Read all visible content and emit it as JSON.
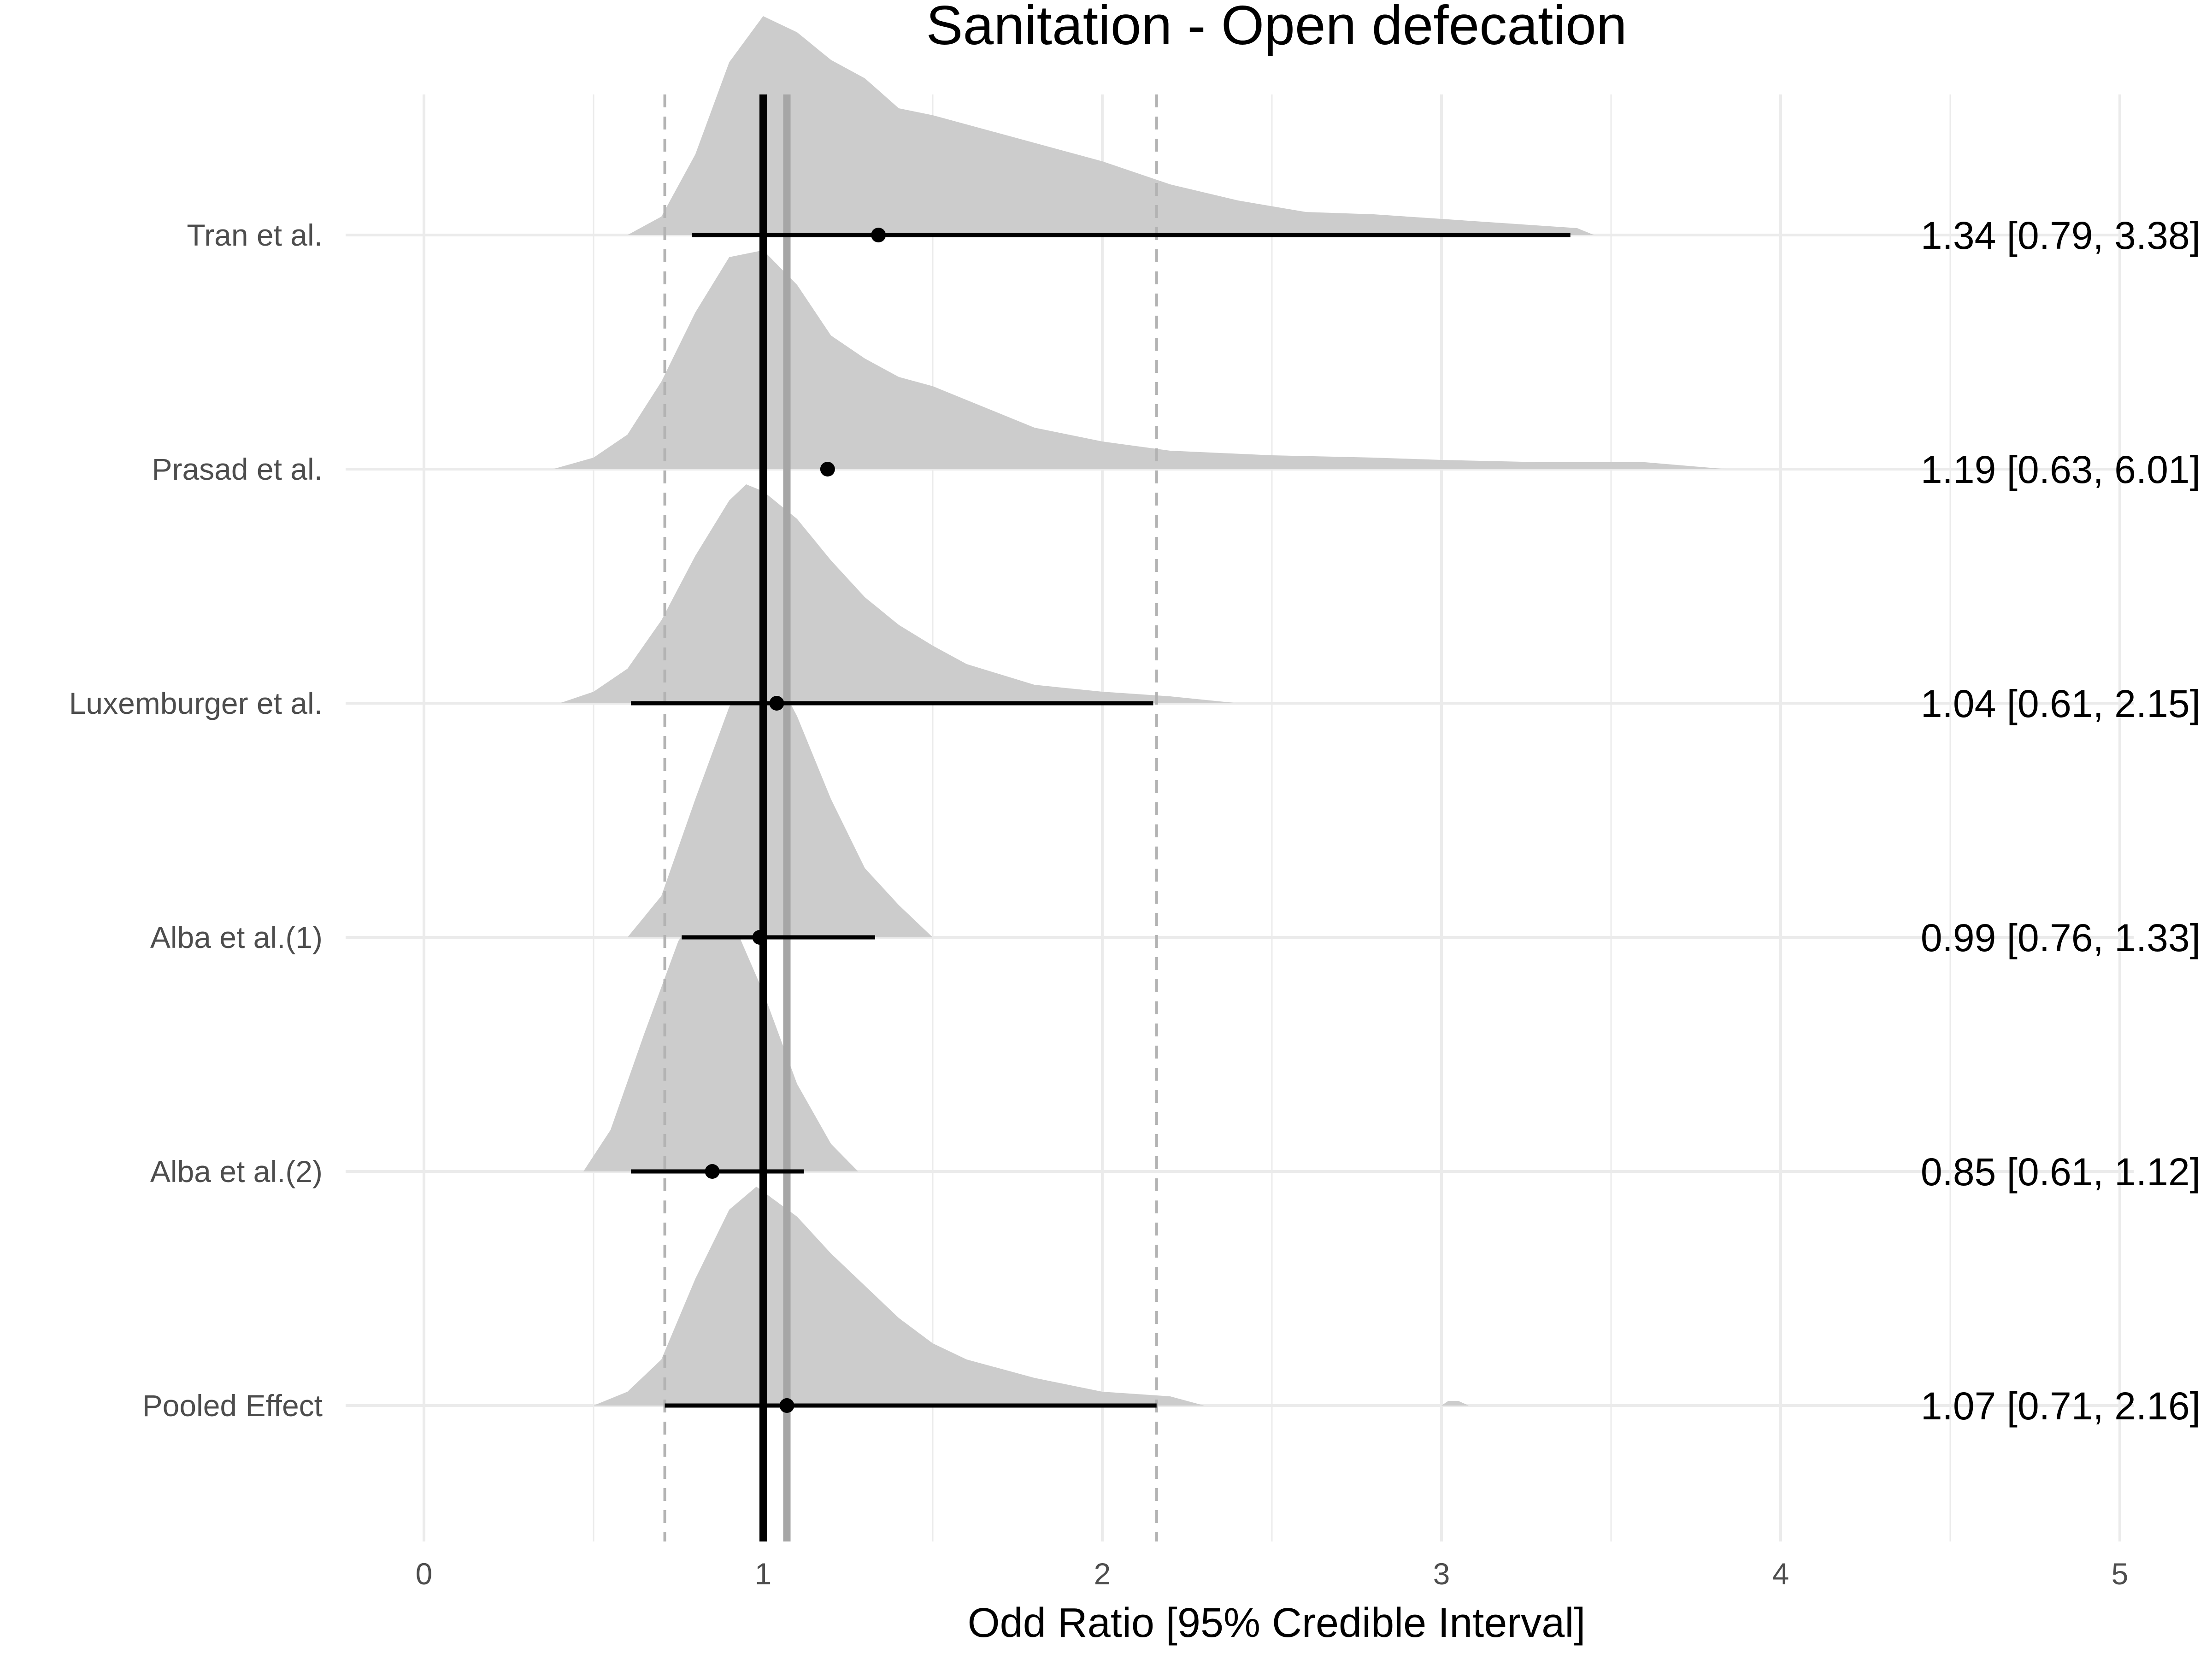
{
  "chart_data": {
    "type": "forest-density",
    "title": "Sanitation - Open defecation",
    "xlabel": "Odd Ratio [95% Credible Interval]",
    "ylabel": "",
    "xlim": [
      0,
      5
    ],
    "x_ticks": [
      0,
      1,
      2,
      3,
      4,
      5
    ],
    "grid": true,
    "reference_line": 1,
    "pooled_estimate_line": 1.07,
    "pooled_interval_lines": [
      0.71,
      2.16
    ],
    "studies": [
      {
        "label": "Tran et al.",
        "estimate": 1.34,
        "lower": 0.79,
        "upper": 3.38,
        "annotation": "1.34 [0.79, 3.38]",
        "density": [
          [
            0.6,
            0
          ],
          [
            0.7,
            0.08
          ],
          [
            0.8,
            0.35
          ],
          [
            0.9,
            0.75
          ],
          [
            1.0,
            0.95
          ],
          [
            1.1,
            0.88
          ],
          [
            1.2,
            0.76
          ],
          [
            1.3,
            0.68
          ],
          [
            1.4,
            0.55
          ],
          [
            1.5,
            0.52
          ],
          [
            1.6,
            0.48
          ],
          [
            1.7,
            0.44
          ],
          [
            1.8,
            0.4
          ],
          [
            1.9,
            0.36
          ],
          [
            2.0,
            0.32
          ],
          [
            2.2,
            0.22
          ],
          [
            2.4,
            0.15
          ],
          [
            2.6,
            0.1
          ],
          [
            2.8,
            0.09
          ],
          [
            3.0,
            0.07
          ],
          [
            3.2,
            0.05
          ],
          [
            3.4,
            0.03
          ],
          [
            3.45,
            0
          ]
        ]
      },
      {
        "label": "Prasad et al.",
        "estimate": 1.19,
        "lower": 0.63,
        "upper": 6.01,
        "annotation": "1.19 [0.63, 6.01]",
        "density": [
          [
            0.38,
            0
          ],
          [
            0.5,
            0.05
          ],
          [
            0.6,
            0.15
          ],
          [
            0.7,
            0.38
          ],
          [
            0.8,
            0.68
          ],
          [
            0.9,
            0.92
          ],
          [
            1.0,
            0.95
          ],
          [
            1.1,
            0.8
          ],
          [
            1.2,
            0.58
          ],
          [
            1.3,
            0.48
          ],
          [
            1.4,
            0.4
          ],
          [
            1.5,
            0.36
          ],
          [
            1.6,
            0.3
          ],
          [
            1.7,
            0.24
          ],
          [
            1.8,
            0.18
          ],
          [
            2.0,
            0.12
          ],
          [
            2.2,
            0.08
          ],
          [
            2.5,
            0.06
          ],
          [
            2.8,
            0.05
          ],
          [
            3.0,
            0.04
          ],
          [
            3.3,
            0.03
          ],
          [
            3.6,
            0.03
          ],
          [
            3.84,
            0
          ]
        ]
      },
      {
        "label": "Luxemburger et al.",
        "estimate": 1.04,
        "lower": 0.61,
        "upper": 2.15,
        "annotation": "1.04 [0.61, 2.15]",
        "density": [
          [
            0.4,
            0
          ],
          [
            0.5,
            0.05
          ],
          [
            0.6,
            0.15
          ],
          [
            0.7,
            0.36
          ],
          [
            0.8,
            0.64
          ],
          [
            0.9,
            0.88
          ],
          [
            0.95,
            0.95
          ],
          [
            1.0,
            0.92
          ],
          [
            1.1,
            0.8
          ],
          [
            1.2,
            0.62
          ],
          [
            1.3,
            0.46
          ],
          [
            1.4,
            0.34
          ],
          [
            1.5,
            0.25
          ],
          [
            1.6,
            0.17
          ],
          [
            1.8,
            0.08
          ],
          [
            2.0,
            0.05
          ],
          [
            2.2,
            0.03
          ],
          [
            2.4,
            0
          ]
        ]
      },
      {
        "label": "Alba et al.(1)",
        "estimate": 0.99,
        "lower": 0.76,
        "upper": 1.33,
        "annotation": "0.99 [0.76, 1.33]",
        "density": [
          [
            0.6,
            0
          ],
          [
            0.7,
            0.18
          ],
          [
            0.8,
            0.6
          ],
          [
            0.9,
            1.0
          ],
          [
            0.98,
            1.2
          ],
          [
            1.05,
            1.1
          ],
          [
            1.1,
            0.96
          ],
          [
            1.2,
            0.6
          ],
          [
            1.3,
            0.3
          ],
          [
            1.4,
            0.14
          ],
          [
            1.5,
            0
          ]
        ]
      },
      {
        "label": "Alba et al.(2)",
        "estimate": 0.85,
        "lower": 0.61,
        "upper": 1.12,
        "annotation": "0.85 [0.61, 1.12]",
        "density": [
          [
            0.47,
            0
          ],
          [
            0.55,
            0.18
          ],
          [
            0.65,
            0.6
          ],
          [
            0.75,
            1.0
          ],
          [
            0.84,
            1.2
          ],
          [
            0.9,
            1.12
          ],
          [
            1.0,
            0.78
          ],
          [
            1.1,
            0.38
          ],
          [
            1.2,
            0.12
          ],
          [
            1.28,
            0
          ]
        ]
      },
      {
        "label": "Pooled Effect",
        "estimate": 1.07,
        "lower": 0.71,
        "upper": 2.16,
        "annotation": "1.07 [0.71, 2.16]",
        "density": [
          [
            0.5,
            0
          ],
          [
            0.6,
            0.06
          ],
          [
            0.7,
            0.2
          ],
          [
            0.8,
            0.55
          ],
          [
            0.9,
            0.85
          ],
          [
            0.98,
            0.95
          ],
          [
            1.1,
            0.82
          ],
          [
            1.2,
            0.66
          ],
          [
            1.3,
            0.52
          ],
          [
            1.4,
            0.38
          ],
          [
            1.5,
            0.27
          ],
          [
            1.6,
            0.2
          ],
          [
            1.8,
            0.12
          ],
          [
            2.0,
            0.06
          ],
          [
            2.2,
            0.04
          ],
          [
            2.3,
            0
          ],
          [
            3.0,
            0
          ],
          [
            3.02,
            0.02
          ],
          [
            3.05,
            0.02
          ],
          [
            3.08,
            0
          ]
        ]
      }
    ]
  }
}
